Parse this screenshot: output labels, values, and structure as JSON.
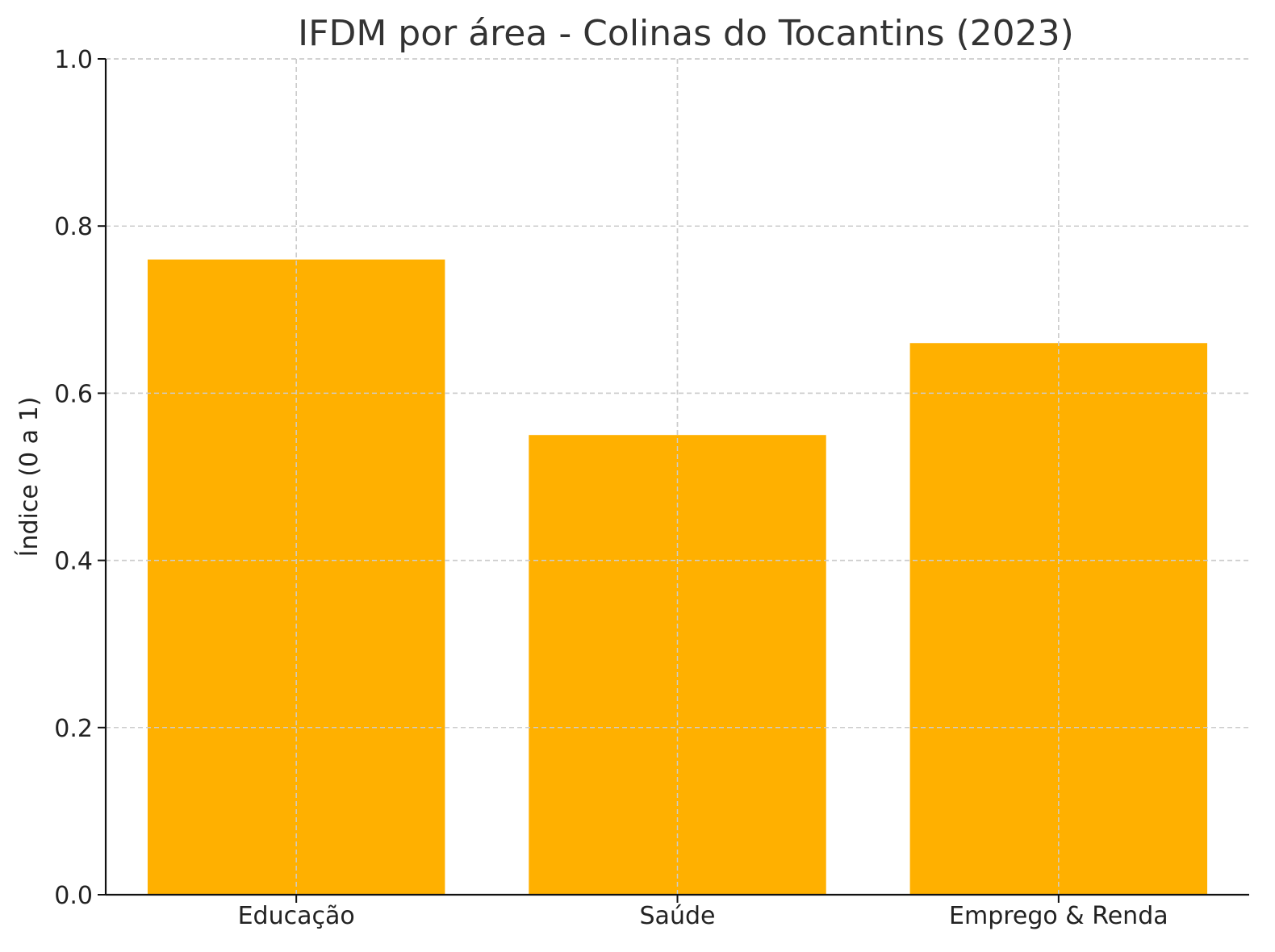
{
  "chart_data": {
    "type": "bar",
    "title": "IFDM por área - Colinas do Tocantins (2023)",
    "xlabel": "",
    "ylabel": "Índice (0 a 1)",
    "categories": [
      "Educação",
      "Saúde",
      "Emprego & Renda"
    ],
    "values": [
      0.76,
      0.55,
      0.66
    ],
    "ylim": [
      0,
      1.0
    ],
    "yticks": [
      "0.0",
      "0.2",
      "0.4",
      "0.6",
      "0.8",
      "1.0"
    ],
    "grid": true,
    "bar_color": "#FFB000"
  }
}
